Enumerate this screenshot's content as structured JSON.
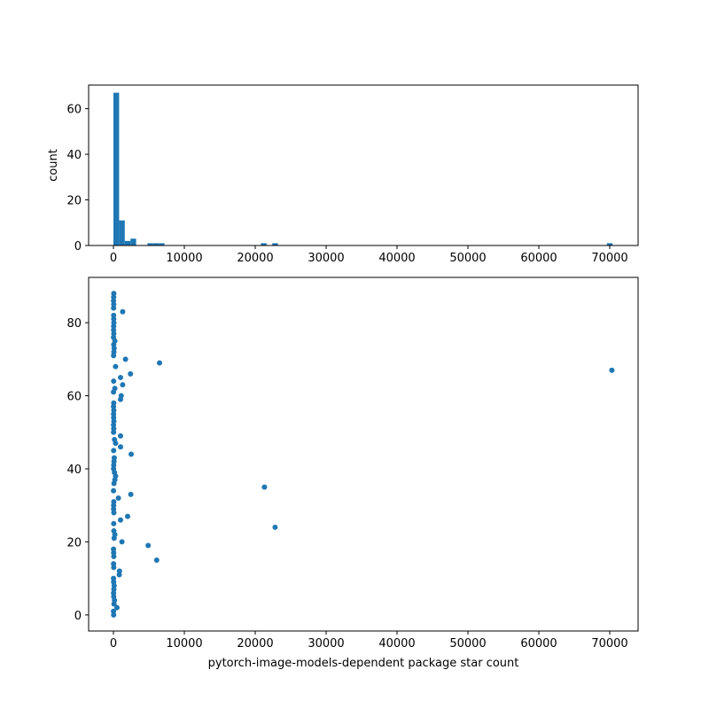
{
  "chart_data": [
    {
      "type": "histogram",
      "ylabel": "count",
      "color": "#1f77b4",
      "bins": [
        0,
        800,
        1600,
        2400,
        3200,
        4000,
        4800,
        5600,
        6400,
        7200,
        8000,
        8800,
        9600,
        10400,
        11200,
        12000,
        12800,
        13600,
        14400,
        15200,
        16000,
        16800,
        17600,
        18400,
        19200,
        20000,
        20800,
        21600,
        22400,
        23200,
        24000,
        24800,
        25600,
        26400,
        27200,
        28000,
        28800,
        29600,
        30400,
        31200,
        32000,
        32800,
        33600,
        34400,
        35200,
        36000,
        36800,
        37600,
        38400,
        39200,
        40000,
        40800,
        41600,
        42400,
        43200,
        44000,
        44800,
        45600,
        46400,
        47200,
        48000,
        48800,
        49600,
        50400,
        51200,
        52000,
        52800,
        53600,
        54400,
        55200,
        56000,
        56800,
        57600,
        58400,
        59200,
        60000,
        60800,
        61600,
        62400,
        63200,
        64000,
        64800,
        65600,
        66400,
        67200,
        68000,
        68800,
        69600,
        70400
      ],
      "counts": [
        67,
        11,
        2,
        3,
        0,
        0,
        1,
        1,
        1,
        0,
        0,
        0,
        0,
        0,
        0,
        0,
        0,
        0,
        0,
        0,
        0,
        0,
        0,
        0,
        0,
        0,
        1,
        0,
        1,
        0,
        0,
        0,
        0,
        0,
        0,
        0,
        0,
        0,
        0,
        0,
        0,
        0,
        0,
        0,
        0,
        0,
        0,
        0,
        0,
        0,
        0,
        0,
        0,
        0,
        0,
        0,
        0,
        0,
        0,
        0,
        0,
        0,
        0,
        0,
        0,
        0,
        0,
        0,
        0,
        0,
        0,
        0,
        0,
        0,
        0,
        0,
        0,
        0,
        0,
        0,
        0,
        0,
        0,
        0,
        0,
        0,
        0,
        1
      ],
      "xlim": [
        -3500,
        74000
      ],
      "xticks": [
        0,
        10000,
        20000,
        30000,
        40000,
        50000,
        60000,
        70000
      ],
      "ylim": [
        0,
        70.35
      ],
      "yticks": [
        0,
        20,
        40,
        60
      ]
    },
    {
      "type": "scatter",
      "xlabel": "pytorch-image-models-dependent package star count",
      "color": "#1f77b4",
      "x": [
        30,
        10,
        500,
        80,
        150,
        40,
        20,
        60,
        100,
        30,
        10,
        820,
        850,
        40,
        20,
        6100,
        50,
        30,
        10,
        4900,
        1200,
        100,
        200,
        60,
        22800,
        40,
        1000,
        2000,
        60,
        20,
        30,
        50,
        700,
        2450,
        10,
        21300,
        80,
        200,
        300,
        150,
        20,
        40,
        80,
        120,
        2500,
        30,
        1000,
        300,
        150,
        1000,
        20,
        40,
        10,
        60,
        30,
        20,
        50,
        10,
        40,
        1000,
        1100,
        10,
        200,
        1300,
        30,
        1000,
        2400,
        70300,
        300,
        6500,
        1700,
        20,
        60,
        100,
        40,
        200,
        10,
        50,
        20,
        30,
        60,
        40,
        30,
        1300,
        20,
        40,
        10,
        30,
        50
      ],
      "values": [
        0,
        1,
        2,
        3,
        4,
        5,
        6,
        7,
        8,
        9,
        10,
        11,
        12,
        13,
        14,
        15,
        16,
        17,
        18,
        19,
        20,
        21,
        22,
        23,
        24,
        25,
        26,
        27,
        28,
        29,
        30,
        31,
        32,
        33,
        34,
        35,
        36,
        37,
        38,
        39,
        40,
        41,
        42,
        43,
        44,
        45,
        46,
        47,
        48,
        49,
        50,
        51,
        52,
        53,
        54,
        55,
        56,
        57,
        58,
        59,
        60,
        61,
        62,
        63,
        64,
        65,
        66,
        67,
        68,
        69,
        70,
        71,
        72,
        73,
        74,
        75,
        76,
        77,
        78,
        79,
        80,
        81,
        82,
        83,
        84,
        85,
        86,
        87,
        88
      ],
      "xlim": [
        -3500,
        74000
      ],
      "xticks": [
        0,
        10000,
        20000,
        30000,
        40000,
        50000,
        60000,
        70000
      ],
      "ylim": [
        -4.4,
        92.4
      ],
      "yticks": [
        0,
        20,
        40,
        60,
        80
      ]
    }
  ]
}
